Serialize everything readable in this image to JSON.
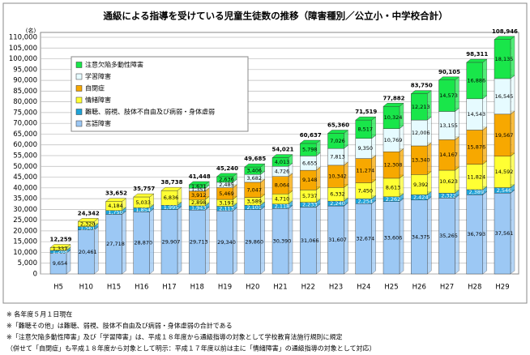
{
  "chart_data": {
    "type": "stacked_bar",
    "title": "通級による指導を受けている児童生徒数の推移（障害種別／公立小・中学校合計）",
    "y_unit": "(名)",
    "categories": [
      "H5",
      "H10",
      "H15",
      "H16",
      "H17",
      "H18",
      "H19",
      "H20",
      "H21",
      "H22",
      "H23",
      "H24",
      "H25",
      "H26",
      "H27",
      "H28",
      "H29"
    ],
    "series": [
      {
        "name": "言語障害",
        "color": "#9cc8f4",
        "values": [
          9654,
          20461,
          27718,
          28870,
          29907,
          29713,
          29340,
          29860,
          30390,
          31066,
          31607,
          32674,
          33606,
          34375,
          35265,
          36793,
          37561
        ],
        "value_labels": [
          "9,654",
          "20,461",
          "27,718",
          "28,870",
          "29,907",
          "29,713",
          "29,340",
          "29,860",
          "30,390",
          "31,066",
          "31,607",
          "32,674",
          "33,606",
          "34,375",
          "35,265",
          "36,793",
          "37,561"
        ]
      },
      {
        "name": "難聴、弱視、肢体不自由及び病弱・身体虚弱",
        "color": "#1ea3d8",
        "values": [
          1268,
          1561,
          1750,
          1854,
          1995,
          1943,
          2113,
          2101,
          2118,
          2233,
          2240,
          2254,
          2262,
          2424,
          2322,
          2389,
          2546
        ],
        "value_labels": [
          "1,268",
          "1,561",
          "1,750",
          "1,854",
          "1,995",
          "1,943",
          "2,113",
          "2,101",
          "2,118",
          "2,233",
          "2,240",
          "2,254",
          "2,262",
          "2,424",
          "2,322",
          "2,389",
          "2,546"
        ]
      },
      {
        "name": "情緒障害",
        "color": "#ffff33",
        "values": [
          1337,
          2320,
          4184,
          5033,
          6836,
          2898,
          3197,
          3589,
          4710,
          5737,
          6332,
          7450,
          8613,
          9392,
          10623,
          11824,
          14592
        ],
        "value_labels": [
          "1,337",
          "2,320",
          "4,184",
          "5,033",
          "6,836",
          "2,898",
          "3,197",
          "3,589",
          "4,710",
          "5,737",
          "6,332",
          "7,450",
          "8,613",
          "9,392",
          "10,623",
          "11,824",
          "14,592"
        ]
      },
      {
        "name": "自閉症",
        "color": "#f7a800",
        "values": [
          null,
          null,
          null,
          null,
          null,
          3912,
          5469,
          7047,
          8064,
          9148,
          10342,
          11274,
          12308,
          13340,
          14167,
          15876,
          19567
        ],
        "value_labels": [
          null,
          null,
          null,
          null,
          null,
          "3,912",
          "5,469",
          "7,047",
          "8,064",
          "9,148",
          "10,342",
          "11,274",
          "12,308",
          "13,340",
          "14,167",
          "15,876",
          "19,567"
        ]
      },
      {
        "name": "学習障害",
        "color": "#e6fbff",
        "values": [
          null,
          null,
          null,
          null,
          null,
          1351,
          2485,
          3682,
          4726,
          6655,
          7813,
          9350,
          10769,
          12006,
          13155,
          14543,
          16545
        ],
        "value_labels": [
          null,
          null,
          null,
          null,
          null,
          "1,351",
          "2,485",
          "3,682",
          "4,726",
          "6,655",
          "7,813",
          "9,350",
          "10,769",
          "12,006",
          "13,155",
          "14,543",
          "16,545"
        ]
      },
      {
        "name": "注意欠陥多動性障害",
        "color": "#19e64a",
        "values": [
          null,
          null,
          null,
          null,
          null,
          1631,
          2636,
          3406,
          4013,
          5798,
          7026,
          8517,
          10324,
          12213,
          14573,
          16886,
          18135
        ],
        "value_labels": [
          null,
          null,
          null,
          null,
          null,
          "1,631",
          "2,636",
          "3,406",
          "4,013",
          "5,798",
          "7,026",
          "8,517",
          "10,324",
          "12,213",
          "14,573",
          "16,886",
          "18,135"
        ]
      }
    ],
    "totals": [
      12259,
      24342,
      33652,
      35757,
      38738,
      41448,
      45240,
      49685,
      54021,
      60637,
      65360,
      71519,
      77882,
      83750,
      90105,
      98311,
      108946
    ],
    "total_labels": [
      "12,259",
      "24,342",
      "33,652",
      "35,757",
      "38,738",
      "41,448",
      "45,240",
      "49,685",
      "54,021",
      "60,637",
      "65,360",
      "71,519",
      "77,882",
      "83,750",
      "90,105",
      "98,311",
      "108,946"
    ],
    "ylim": [
      0,
      110000
    ],
    "yticks": [
      0,
      {
        "value": 5000,
        "label": "5,000"
      },
      {
        "value": 10000,
        "label": "10,000"
      },
      {
        "value": 15000,
        "label": "15,000"
      },
      {
        "value": 20000,
        "label": "20,000"
      },
      {
        "value": 25000,
        "label": "25,000"
      },
      {
        "value": 30000,
        "label": "30,000"
      },
      {
        "value": 35000,
        "label": "35,000"
      },
      {
        "value": 40000,
        "label": "40,000"
      },
      {
        "value": 45000,
        "label": "45,000"
      },
      {
        "value": 50000,
        "label": "50,000"
      },
      {
        "value": 55000,
        "label": "55,000"
      },
      {
        "value": 60000,
        "label": "60,000"
      },
      {
        "value": 65000,
        "label": "65,000"
      },
      {
        "value": 70000,
        "label": "70,000"
      },
      {
        "value": 75000,
        "label": "75,000"
      },
      {
        "value": 80000,
        "label": "80,000"
      },
      {
        "value": 85000,
        "label": "85,000"
      },
      {
        "value": 90000,
        "label": "90,000"
      },
      {
        "value": 95000,
        "label": "95,000"
      },
      {
        "value": 100000,
        "label": "100,000"
      },
      {
        "value": 105000,
        "label": "105,000"
      },
      {
        "value": 110000,
        "label": "110,000"
      }
    ],
    "grid": true,
    "legend": "upper left",
    "footnotes": [
      "※ 各年度５月１日現在",
      "※「難聴その他」は難聴、弱視、肢体不自由及び病弱・身体虚弱の合計である",
      "※「注意欠陥多動性障害」及び「学習障害」は、平成１８年度から通級指導の対象として学校教育法施行規則に規定",
      "（併せて「自閉症」も平成１８年度から対象として明示：平成１７年度以前は主に「情緒障害」の通級指導の対象として対応）"
    ]
  }
}
